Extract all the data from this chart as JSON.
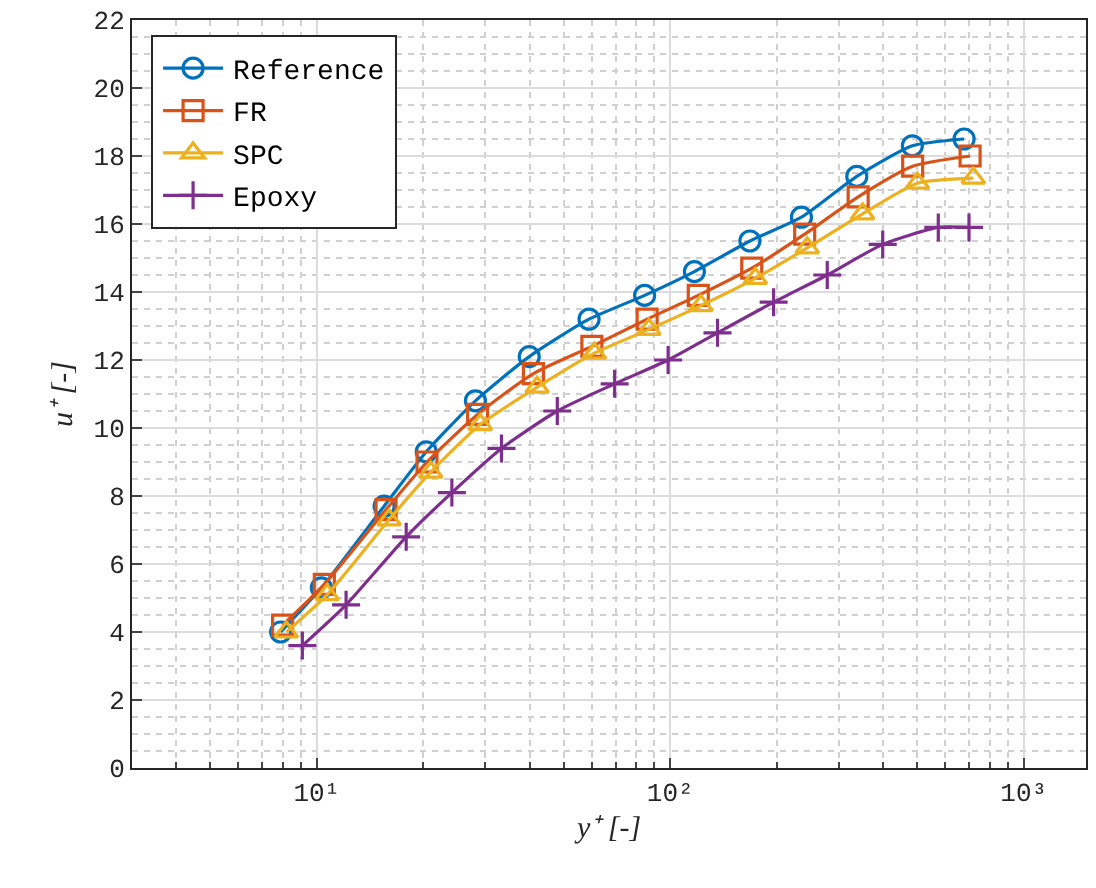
{
  "chart_data": {
    "type": "line",
    "xlabel": "y⁺ [-]",
    "ylabel": "u⁺ [-]",
    "log": "x",
    "xlim": [
      3,
      1500
    ],
    "xticks": [
      {
        "value": 10,
        "label": "10¹"
      },
      {
        "value": 100,
        "label": "10²"
      },
      {
        "value": 1000,
        "label": "10³"
      }
    ],
    "ylim": [
      0,
      22
    ],
    "yticks": [
      0,
      2,
      4,
      6,
      8,
      10,
      12,
      14,
      16,
      18,
      20,
      22
    ],
    "grid": true,
    "legend": "top left",
    "line_style": "solid",
    "series": [
      {
        "name": "Reference",
        "color": "#0072bd",
        "marker": "circle",
        "x": [
          7.9,
          10.3,
          15.5,
          20.4,
          28.1,
          39.9,
          58.9,
          84.6,
          117,
          168,
          235,
          337,
          484,
          678
        ],
        "values": [
          4.0,
          5.3,
          7.7,
          9.3,
          10.8,
          12.1,
          13.2,
          13.9,
          14.6,
          15.5,
          16.2,
          17.4,
          18.3,
          18.5
        ]
      },
      {
        "name": "FR",
        "color": "#d95319",
        "marker": "square",
        "x": [
          8.0,
          10.5,
          15.7,
          20.5,
          28.5,
          41,
          60,
          86,
          120,
          170,
          240,
          340,
          485,
          705
        ],
        "values": [
          4.2,
          5.4,
          7.6,
          9.0,
          10.4,
          11.6,
          12.4,
          13.2,
          13.9,
          14.7,
          15.7,
          16.8,
          17.7,
          18.0
        ]
      },
      {
        "name": "SPC",
        "color": "#edb120",
        "marker": "triangle",
        "x": [
          8.2,
          10.7,
          16,
          21,
          29,
          42,
          61,
          87,
          122,
          174,
          244,
          350,
          500,
          720
        ],
        "values": [
          4.0,
          5.1,
          7.3,
          8.7,
          10.1,
          11.2,
          12.2,
          12.9,
          13.6,
          14.4,
          15.3,
          16.3,
          17.2,
          17.35
        ]
      },
      {
        "name": "Epoxy",
        "color": "#7e2f8e",
        "marker": "cross",
        "x": [
          9.1,
          12.1,
          17.9,
          24.1,
          33.3,
          47.9,
          69.6,
          98.6,
          136,
          196,
          278,
          399,
          573,
          700
        ],
        "values": [
          3.6,
          4.8,
          6.8,
          8.1,
          9.4,
          10.5,
          11.3,
          12.0,
          12.8,
          13.7,
          14.5,
          15.4,
          15.9,
          15.9
        ]
      }
    ]
  }
}
